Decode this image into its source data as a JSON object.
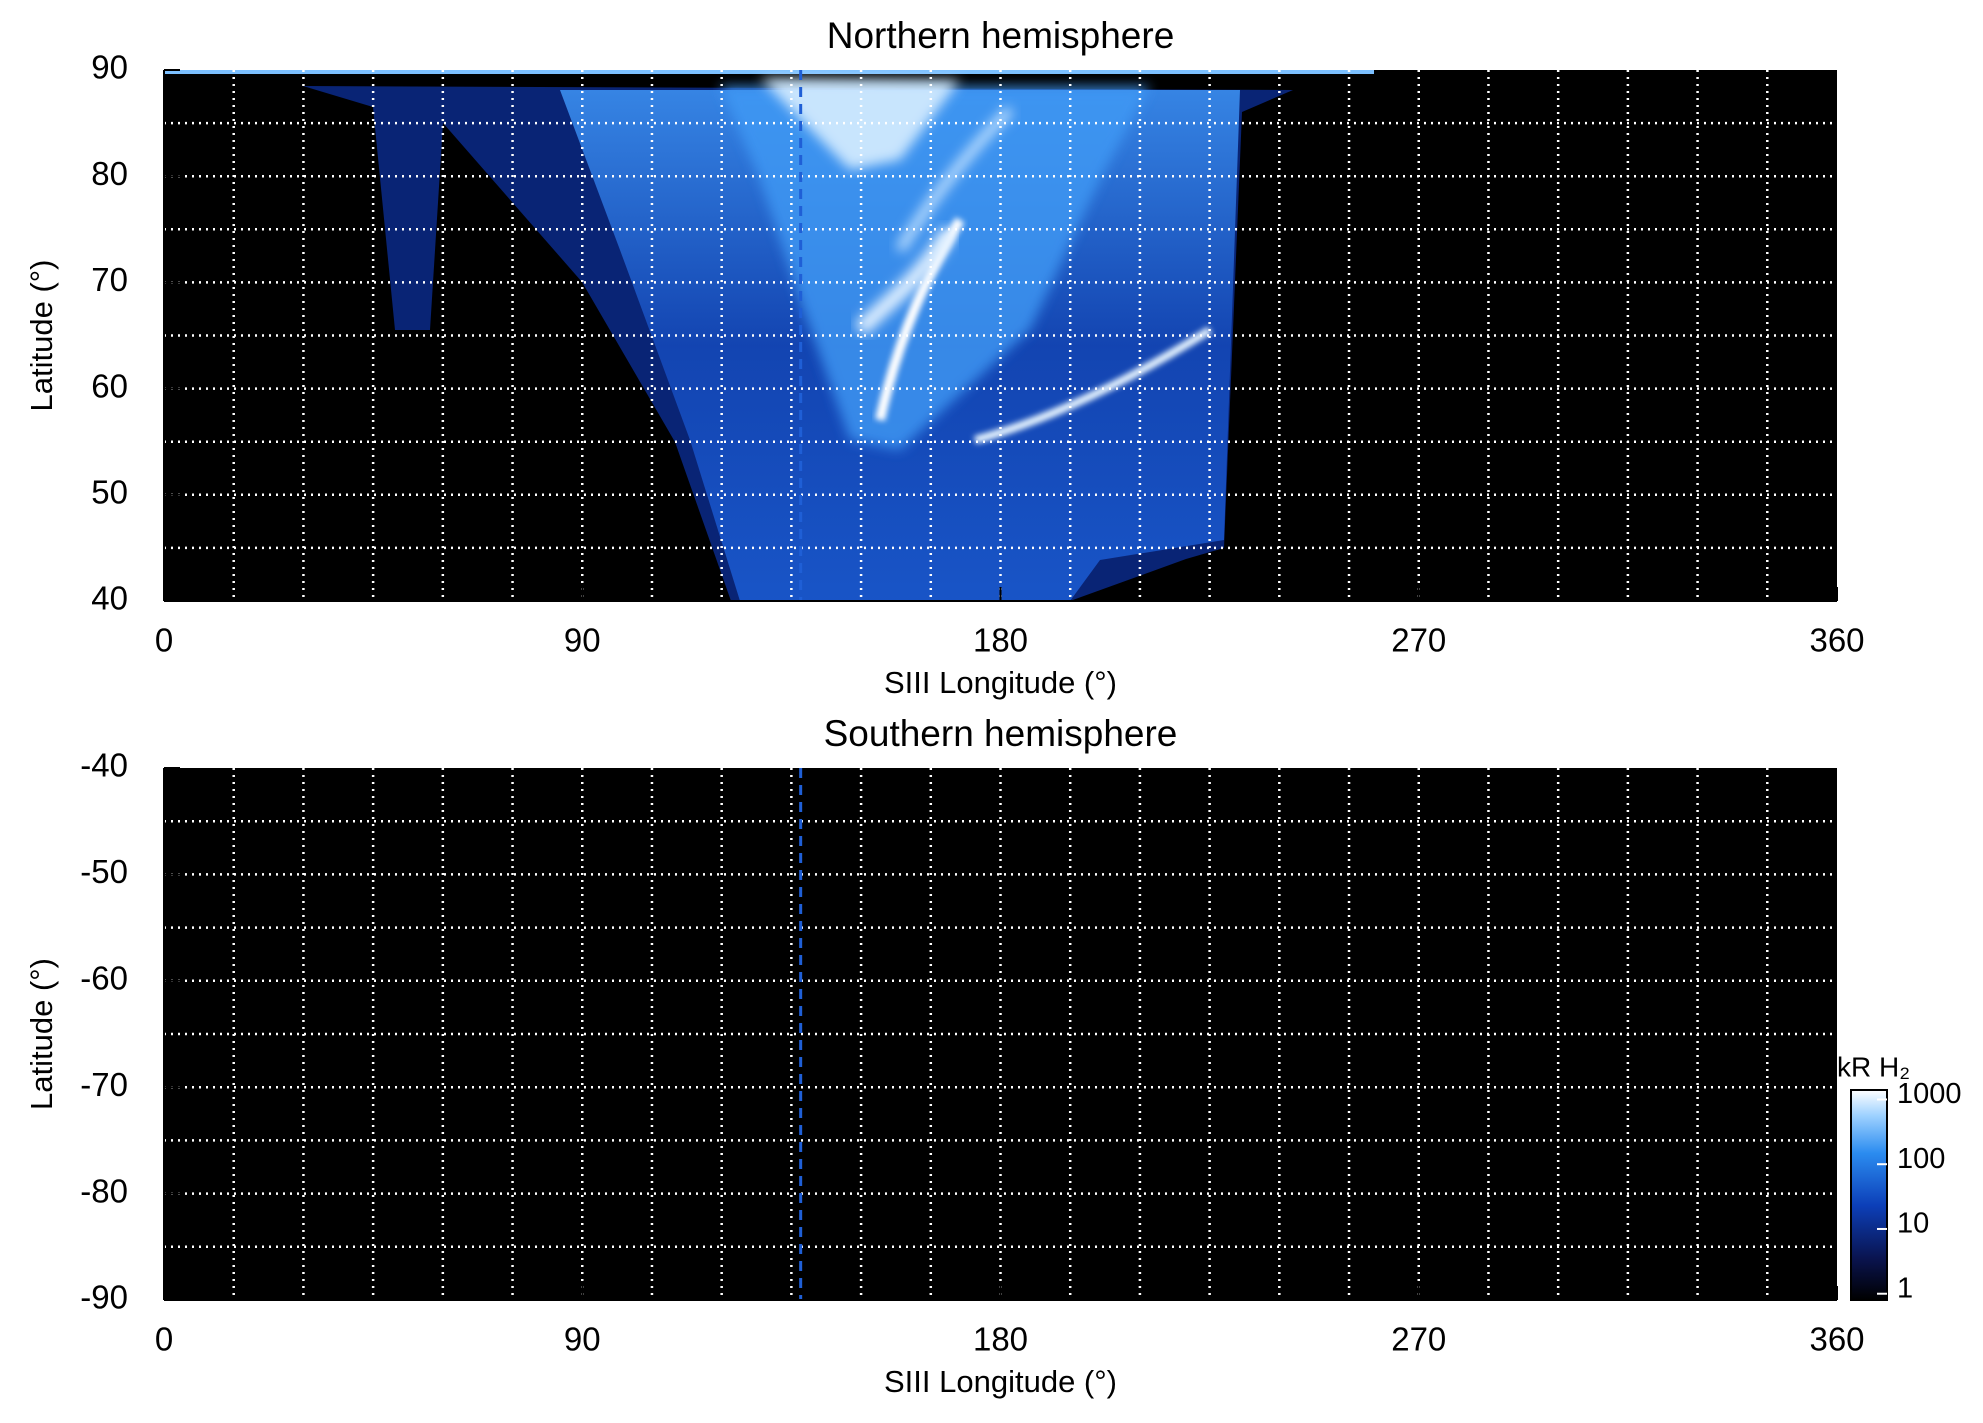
{
  "chart_data": [
    {
      "type": "heatmap",
      "title": "Northern hemisphere",
      "x_label": "SIII Longitude (°)",
      "y_label": "Latitude (°)",
      "xlim": [
        0,
        360
      ],
      "xticks": [
        0,
        90,
        180,
        270,
        360
      ],
      "ylim": [
        40,
        90
      ],
      "yticks": [
        40,
        50,
        60,
        70,
        80,
        90
      ],
      "grid": true,
      "x_grid_step": 15,
      "y_grid_step": 5,
      "vline": 137,
      "vline_color": "#1f5fd6"
    },
    {
      "type": "heatmap",
      "title": "Southern hemisphere",
      "x_label": "SIII Longitude (°)",
      "y_label": "Latitude (°)",
      "xlim": [
        0,
        360
      ],
      "xticks": [
        0,
        90,
        180,
        270,
        360
      ],
      "ylim": [
        -90,
        -40
      ],
      "yticks": [
        -90,
        -80,
        -70,
        -60,
        -50,
        -40
      ],
      "grid": true,
      "x_grid_step": 15,
      "y_grid_step": 5,
      "vline": 137,
      "vline_color": "#1f5fd6",
      "colorbar": {
        "label": "kR H₂",
        "log": true,
        "lim": [
          0.8,
          1400
        ],
        "ticks": [
          1,
          10,
          100,
          1000
        ]
      }
    }
  ]
}
